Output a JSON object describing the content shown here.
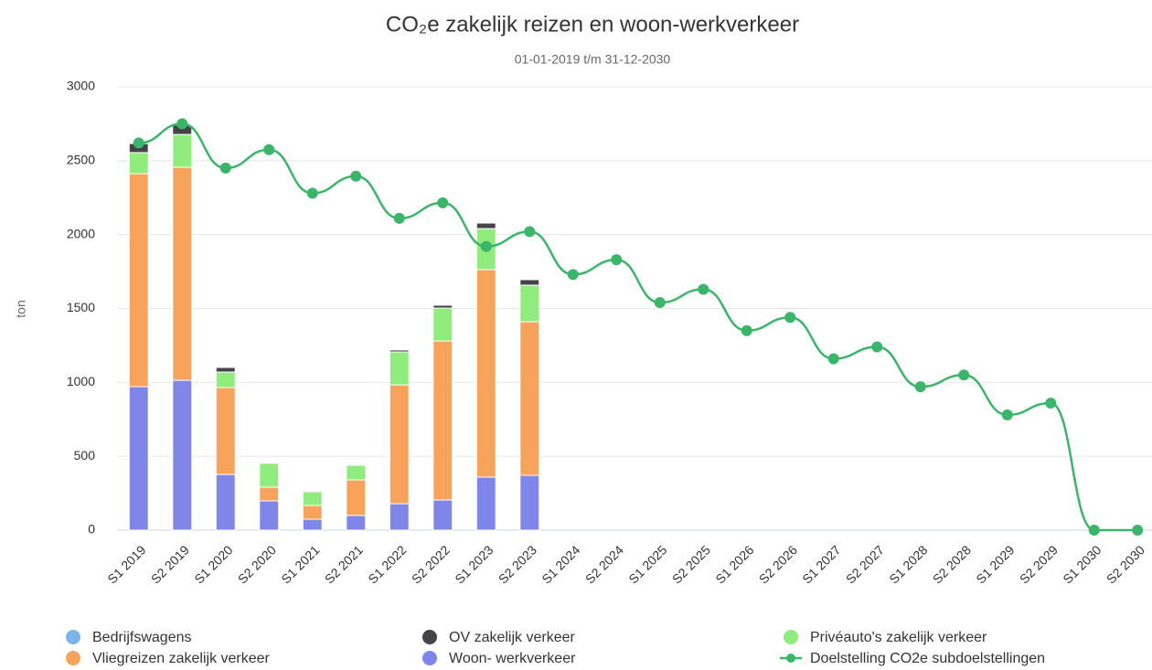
{
  "chart_data": {
    "type": "bar",
    "stacked": true,
    "title": "CO₂e zakelijk reizen en woon-werkverkeer",
    "subtitle": "01-01-2019 t/m 31-12-2030",
    "y_label": "ton",
    "categories": [
      "S1 2019",
      "S2 2019",
      "S1 2020",
      "S2 2020",
      "S1 2021",
      "S2 2021",
      "S1 2022",
      "S2 2022",
      "S1 2023",
      "S2 2023",
      "S1 2024",
      "S2 2024",
      "S1 2025",
      "S2 2025",
      "S1 2026",
      "S2 2026",
      "S1 2027",
      "S2 2027",
      "S1 2028",
      "S2 2028",
      "S1 2029",
      "S2 2029",
      "S1 2030",
      "S2 2030"
    ],
    "ylim": [
      0,
      3000
    ],
    "yticks": [
      0,
      500,
      1000,
      1500,
      2000,
      2500,
      3000
    ],
    "grid": true,
    "legend": "bottom",
    "series": [
      {
        "name": "Bedrijfswagens",
        "color": "#7cb5ec",
        "values": [
          0,
          0,
          0,
          0,
          0,
          0,
          0,
          0,
          0,
          0,
          0,
          0,
          0,
          0,
          0,
          0,
          0,
          0,
          0,
          0,
          0,
          0,
          0,
          0
        ]
      },
      {
        "name": "OV zakelijk verkeer",
        "color": "#434348",
        "values": [
          61,
          62,
          31,
          0,
          5,
          5,
          13,
          19,
          37,
          37,
          0,
          0,
          0,
          0,
          0,
          0,
          0,
          0,
          0,
          0,
          0,
          0,
          0,
          0
        ]
      },
      {
        "name": "Privéauto's zakelijk verkeer",
        "color": "#90ed7d",
        "values": [
          143,
          222,
          105,
          161,
          93,
          99,
          223,
          223,
          278,
          248,
          0,
          0,
          0,
          0,
          0,
          0,
          0,
          0,
          0,
          0,
          0,
          0,
          0,
          0
        ]
      },
      {
        "name": "Vliegreizen zakelijk verkeer",
        "color": "#f7a35c",
        "values": [
          1441,
          1442,
          588,
          93,
          93,
          241,
          804,
          1076,
          1404,
          1039,
          0,
          0,
          0,
          0,
          0,
          0,
          0,
          0,
          0,
          0,
          0,
          0,
          0,
          0
        ]
      },
      {
        "name": "Woon- werkverkeer",
        "color": "#8085e9",
        "values": [
          971,
          1014,
          377,
          198,
          74,
          99,
          179,
          204,
          359,
          371,
          0,
          0,
          0,
          0,
          0,
          0,
          0,
          0,
          0,
          0,
          0,
          0,
          0,
          0
        ]
      },
      {
        "name": "Doelstelling CO2e subdoelstellingen",
        "color": "#3bb56a",
        "type": "line",
        "values": [
          2620,
          2750,
          2450,
          2575,
          2280,
          2395,
          2110,
          2215,
          1920,
          2020,
          1730,
          1830,
          1540,
          1630,
          1350,
          1440,
          1160,
          1240,
          970,
          1050,
          780,
          860,
          0,
          0
        ]
      }
    ]
  }
}
